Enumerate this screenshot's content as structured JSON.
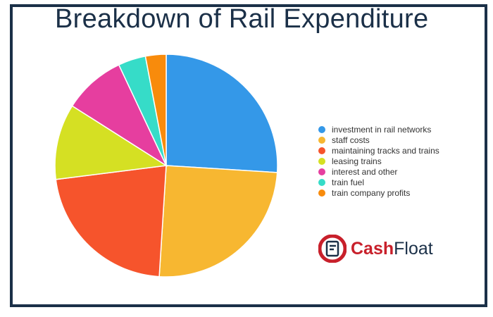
{
  "title": "Breakdown of Rail Expenditure",
  "chart_data": {
    "type": "pie",
    "title": "Breakdown of Rail Expenditure",
    "legend_position": "right",
    "slices": [
      {
        "label": "investment in rail networks",
        "value": 26,
        "color": "#3498e8"
      },
      {
        "label": "staff costs",
        "value": 25,
        "color": "#f7b731"
      },
      {
        "label": "maintaining tracks and trains",
        "value": 22,
        "color": "#f6542c"
      },
      {
        "label": "leasing trains",
        "value": 11,
        "color": "#d5e023"
      },
      {
        "label": "interest and other",
        "value": 9,
        "color": "#e63e9f"
      },
      {
        "label": "train fuel",
        "value": 4,
        "color": "#36dcc8"
      },
      {
        "label": "train company profits",
        "value": 3,
        "color": "#f88b0c"
      }
    ]
  },
  "brand": {
    "name_part1": "Cash",
    "name_part2": "Float",
    "color": "#c8202b"
  }
}
